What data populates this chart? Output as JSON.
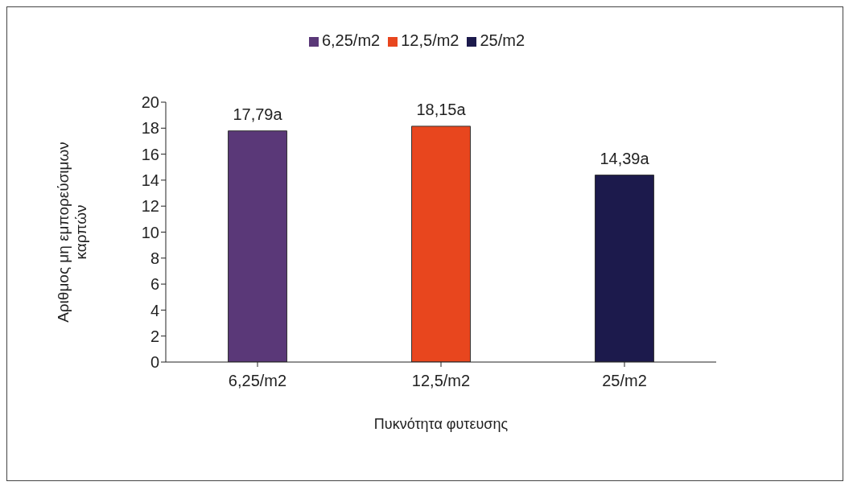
{
  "chart_data": {
    "type": "bar",
    "xlabel": "Πυκνότητα φυτευσης",
    "ylabel": "Αριθμος μη εμπορεύσιμων καρπών",
    "categories": [
      "6,25/m2",
      "12,5/m2",
      "25/m2"
    ],
    "series": [
      {
        "name": "6,25/m2",
        "color": "#5a3878",
        "values": [
          17.79,
          null,
          null
        ],
        "value_labels": [
          "17,79a",
          null,
          null
        ]
      },
      {
        "name": "12,5/m2",
        "color": "#e8461e",
        "values": [
          null,
          18.15,
          null
        ],
        "value_labels": [
          null,
          "18,15a",
          null
        ]
      },
      {
        "name": "25/m2",
        "color": "#1c1a4c",
        "values": [
          null,
          null,
          14.39
        ],
        "value_labels": [
          null,
          null,
          "14,39a"
        ]
      }
    ],
    "ylim": [
      0,
      20
    ],
    "yticks": [
      0,
      2,
      4,
      6,
      8,
      10,
      12,
      14,
      16,
      18,
      20
    ],
    "grid": false,
    "legend": "top"
  }
}
